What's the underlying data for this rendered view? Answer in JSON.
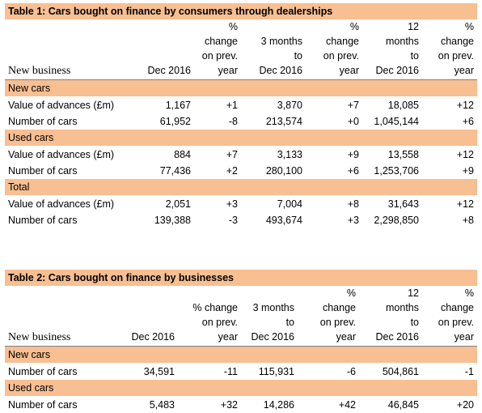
{
  "table1": {
    "title": "Table 1: Cars bought on finance by consumers through dealerships",
    "new_business": "New business",
    "headers": [
      [
        "Dec 2016"
      ],
      [
        "%",
        "change",
        "on prev.",
        "year"
      ],
      [
        "3 months",
        "to",
        "Dec 2016"
      ],
      [
        "%",
        "change",
        "on prev.",
        "year"
      ],
      [
        "12",
        "months",
        "to",
        "Dec 2016"
      ],
      [
        "%",
        "change",
        "on prev.",
        "year"
      ]
    ],
    "sections": [
      {
        "name": "New cars",
        "rows": [
          {
            "label": "Value of advances (£m)",
            "cells": [
              "1,167",
              "+1",
              "3,870",
              "+7",
              "18,085",
              "+12"
            ]
          },
          {
            "label": "Number of cars",
            "cells": [
              "61,952",
              "-8",
              "213,574",
              "+0",
              "1,045,144",
              "+6"
            ]
          }
        ]
      },
      {
        "name": "Used cars",
        "rows": [
          {
            "label": "Value of advances (£m)",
            "cells": [
              "884",
              "+7",
              "3,133",
              "+9",
              "13,558",
              "+12"
            ]
          },
          {
            "label": "Number of cars",
            "cells": [
              "77,436",
              "+2",
              "280,100",
              "+6",
              "1,253,706",
              "+9"
            ]
          }
        ]
      },
      {
        "name": "Total",
        "rows": [
          {
            "label": "Value of advances (£m)",
            "cells": [
              "2,051",
              "+3",
              "7,004",
              "+8",
              "31,643",
              "+12"
            ]
          },
          {
            "label": "Number of cars",
            "cells": [
              "139,388",
              "-3",
              "493,674",
              "+3",
              "2,298,850",
              "+8"
            ]
          }
        ]
      }
    ]
  },
  "table2": {
    "title": "Table 2: Cars bought on finance by businesses",
    "new_business": "New business",
    "headers": [
      [
        "Dec 2016"
      ],
      [
        "% change",
        "on prev.",
        "year"
      ],
      [
        "3 months",
        "to",
        "Dec 2016"
      ],
      [
        "%",
        "change",
        "on prev.",
        "year"
      ],
      [
        "12",
        "months",
        "to",
        "Dec 2016"
      ],
      [
        "%",
        "change",
        "on prev.",
        "year"
      ]
    ],
    "sections": [
      {
        "name": "New cars",
        "rows": [
          {
            "label": "Number of cars",
            "cells": [
              "34,591",
              "-11",
              "115,931",
              "-6",
              "504,861",
              "-1"
            ]
          }
        ]
      },
      {
        "name": "Used cars",
        "rows": [
          {
            "label": "Number of cars",
            "cells": [
              "5,483",
              "+32",
              "14,286",
              "+42",
              "46,845",
              "+20"
            ]
          }
        ]
      }
    ]
  },
  "colors": {
    "section_fill": "#f7bf92",
    "rule": "#7f7f7f"
  }
}
